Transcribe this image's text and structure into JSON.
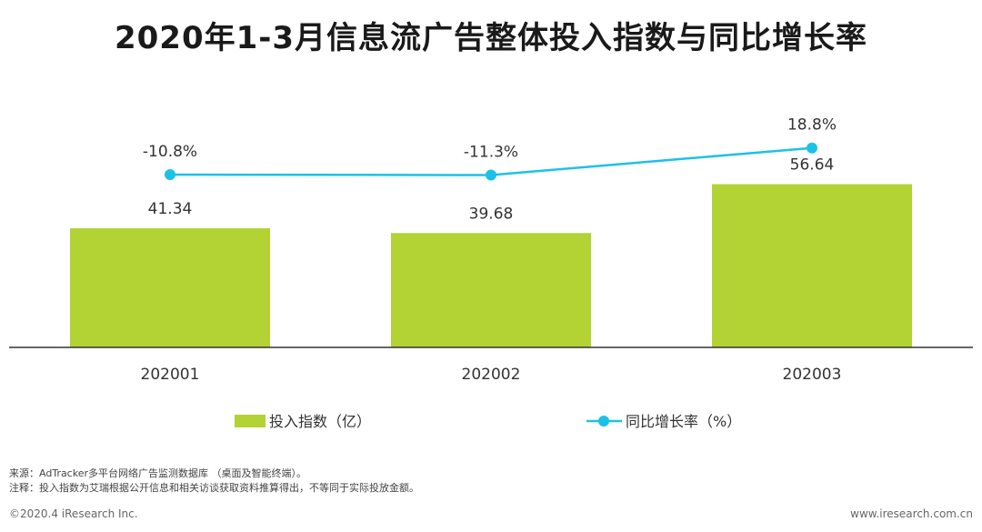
{
  "title": "2020年1-3月信息流广告整体投入指数与同比增长率",
  "colors": {
    "bar": "#b3d234",
    "line": "#1cc1e6",
    "axis": "#333333",
    "text": "#333333"
  },
  "chart_data": {
    "type": "bar+line",
    "title": "2020年1-3月信息流广告整体投入指数与同比增长率",
    "categories": [
      "202001",
      "202002",
      "202003"
    ],
    "series": [
      {
        "name": "投入指数（亿）",
        "type": "bar",
        "values": [
          41.34,
          39.68,
          56.64
        ],
        "labels": [
          "41.34",
          "39.68",
          "56.64"
        ]
      },
      {
        "name": "同比增长率（%）",
        "type": "line",
        "values": [
          -10.8,
          -11.3,
          18.8
        ],
        "labels": [
          "-10.8%",
          "-11.3%",
          "18.8%"
        ]
      }
    ],
    "legend_position": "bottom-center"
  },
  "footer": {
    "source": "来源：AdTracker多平台网络广告监测数据库 （桌面及智能终端）。",
    "note": "注释：投入指数为艾瑞根据公开信息和相关访谈获取资料推算得出，不等同于实际投放金额。",
    "copyright": "©2020.4 iResearch Inc.",
    "website": "www.iresearch.com.cn"
  }
}
